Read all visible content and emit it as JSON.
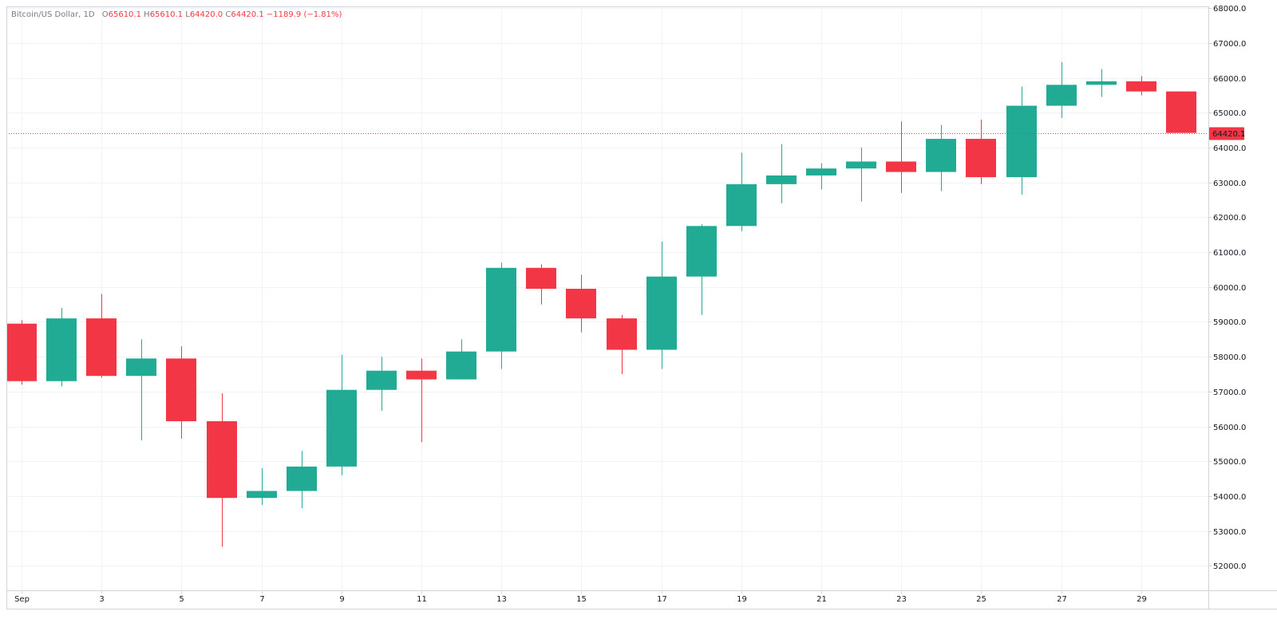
{
  "legend": {
    "symbol": "Bitcoin/US Dollar, 1D",
    "open_label": "O",
    "open": "65610.1",
    "high_label": "H",
    "high": "65610.1",
    "low_label": "L",
    "low": "64420.0",
    "close_label": "C",
    "close": "64420.1",
    "change": "−1189.9 (−1.81%)"
  },
  "colors": {
    "up": "#22ab94",
    "down": "#f23645",
    "grid": "#f0f3fa",
    "axis_line": "#d1d4dc",
    "axis_text": "#131722"
  },
  "chart_data": {
    "type": "candlestick",
    "title": "Bitcoin/US Dollar, 1D",
    "xlabel": "",
    "ylabel": "",
    "ylim": [
      51300,
      68050
    ],
    "price_ticks": [
      "52000.0",
      "53000.0",
      "54000.0",
      "55000.0",
      "56000.0",
      "57000.0",
      "58000.0",
      "59000.0",
      "60000.0",
      "61000.0",
      "62000.0",
      "63000.0",
      "64000.0",
      "65000.0",
      "66000.0",
      "67000.0",
      "68000.0"
    ],
    "date_ticks": [
      {
        "index": 0,
        "label": "Sep"
      },
      {
        "index": 2,
        "label": "3"
      },
      {
        "index": 4,
        "label": "5"
      },
      {
        "index": 6,
        "label": "7"
      },
      {
        "index": 8,
        "label": "9"
      },
      {
        "index": 10,
        "label": "11"
      },
      {
        "index": 12,
        "label": "13"
      },
      {
        "index": 14,
        "label": "15"
      },
      {
        "index": 16,
        "label": "17"
      },
      {
        "index": 18,
        "label": "19"
      },
      {
        "index": 20,
        "label": "21"
      },
      {
        "index": 22,
        "label": "23"
      },
      {
        "index": 24,
        "label": "25"
      },
      {
        "index": 26,
        "label": "27"
      },
      {
        "index": 28,
        "label": "29"
      }
    ],
    "current_price": 64420.1,
    "current_price_label": "64420.1",
    "candles": [
      {
        "date": "Sep 1",
        "open": 58950,
        "high": 59050,
        "low": 57200,
        "close": 57300
      },
      {
        "date": "Sep 2",
        "open": 57300,
        "high": 59400,
        "low": 57150,
        "close": 59100
      },
      {
        "date": "Sep 3",
        "open": 59100,
        "high": 59800,
        "low": 57400,
        "close": 57450
      },
      {
        "date": "Sep 4",
        "open": 57450,
        "high": 58500,
        "low": 55600,
        "close": 57950
      },
      {
        "date": "Sep 5",
        "open": 57950,
        "high": 58300,
        "low": 55650,
        "close": 56150
      },
      {
        "date": "Sep 6",
        "open": 56150,
        "high": 56950,
        "low": 52550,
        "close": 53950
      },
      {
        "date": "Sep 7",
        "open": 53950,
        "high": 54800,
        "low": 53750,
        "close": 54150
      },
      {
        "date": "Sep 8",
        "open": 54150,
        "high": 55300,
        "low": 53650,
        "close": 54850
      },
      {
        "date": "Sep 9",
        "open": 54850,
        "high": 58050,
        "low": 54600,
        "close": 57050
      },
      {
        "date": "Sep 10",
        "open": 57050,
        "high": 58000,
        "low": 56450,
        "close": 57600
      },
      {
        "date": "Sep 11",
        "open": 57600,
        "high": 57950,
        "low": 55550,
        "close": 57350
      },
      {
        "date": "Sep 12",
        "open": 57350,
        "high": 58500,
        "low": 57350,
        "close": 58150
      },
      {
        "date": "Sep 13",
        "open": 58150,
        "high": 60700,
        "low": 57650,
        "close": 60550
      },
      {
        "date": "Sep 14",
        "open": 60550,
        "high": 60650,
        "low": 59500,
        "close": 59950
      },
      {
        "date": "Sep 15",
        "open": 59950,
        "high": 60350,
        "low": 58700,
        "close": 59100
      },
      {
        "date": "Sep 16",
        "open": 59100,
        "high": 59200,
        "low": 57500,
        "close": 58200
      },
      {
        "date": "Sep 17",
        "open": 58200,
        "high": 61300,
        "low": 57650,
        "close": 60300
      },
      {
        "date": "Sep 18",
        "open": 60300,
        "high": 61800,
        "low": 59200,
        "close": 61750
      },
      {
        "date": "Sep 19",
        "open": 61750,
        "high": 63850,
        "low": 61600,
        "close": 62950
      },
      {
        "date": "Sep 20",
        "open": 62950,
        "high": 64100,
        "low": 62400,
        "close": 63200
      },
      {
        "date": "Sep 21",
        "open": 63200,
        "high": 63550,
        "low": 62800,
        "close": 63400
      },
      {
        "date": "Sep 22",
        "open": 63400,
        "high": 64000,
        "low": 62450,
        "close": 63600
      },
      {
        "date": "Sep 23",
        "open": 63600,
        "high": 64750,
        "low": 62700,
        "close": 63300
      },
      {
        "date": "Sep 24",
        "open": 63300,
        "high": 64650,
        "low": 62750,
        "close": 64250
      },
      {
        "date": "Sep 25",
        "open": 64250,
        "high": 64800,
        "low": 62950,
        "close": 63150
      },
      {
        "date": "Sep 26",
        "open": 63150,
        "high": 65750,
        "low": 62650,
        "close": 65200
      },
      {
        "date": "Sep 27",
        "open": 65200,
        "high": 66450,
        "low": 64850,
        "close": 65800
      },
      {
        "date": "Sep 28",
        "open": 65800,
        "high": 66250,
        "low": 65450,
        "close": 65900
      },
      {
        "date": "Sep 29",
        "open": 65900,
        "high": 66050,
        "low": 65500,
        "close": 65610
      },
      {
        "date": "Sep 30",
        "open": 65610,
        "high": 65610.1,
        "low": 64420,
        "close": 64420.1
      }
    ]
  }
}
